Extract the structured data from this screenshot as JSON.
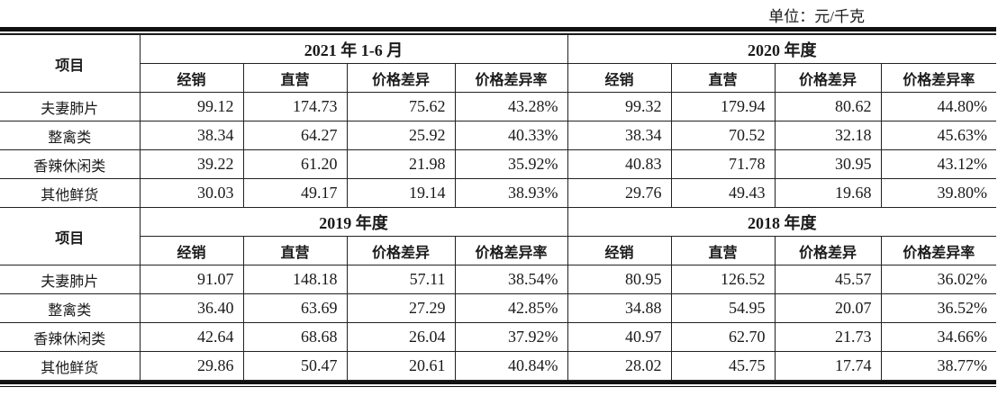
{
  "unit_label": "单位：元/千克",
  "item_header": "项目",
  "column_headers": [
    "经销",
    "直营",
    "价格差异",
    "价格差异率"
  ],
  "blocks": [
    {
      "periods": [
        "2021 年 1-6 月",
        "2020 年度"
      ],
      "rows": [
        {
          "item": "夫妻肺片",
          "values": [
            [
              "99.12",
              "174.73",
              "75.62",
              "43.28%"
            ],
            [
              "99.32",
              "179.94",
              "80.62",
              "44.80%"
            ]
          ]
        },
        {
          "item": "整禽类",
          "values": [
            [
              "38.34",
              "64.27",
              "25.92",
              "40.33%"
            ],
            [
              "38.34",
              "70.52",
              "32.18",
              "45.63%"
            ]
          ]
        },
        {
          "item": "香辣休闲类",
          "values": [
            [
              "39.22",
              "61.20",
              "21.98",
              "35.92%"
            ],
            [
              "40.83",
              "71.78",
              "30.95",
              "43.12%"
            ]
          ]
        },
        {
          "item": "其他鲜货",
          "values": [
            [
              "30.03",
              "49.17",
              "19.14",
              "38.93%"
            ],
            [
              "29.76",
              "49.43",
              "19.68",
              "39.80%"
            ]
          ]
        }
      ]
    },
    {
      "periods": [
        "2019 年度",
        "2018 年度"
      ],
      "rows": [
        {
          "item": "夫妻肺片",
          "values": [
            [
              "91.07",
              "148.18",
              "57.11",
              "38.54%"
            ],
            [
              "80.95",
              "126.52",
              "45.57",
              "36.02%"
            ]
          ]
        },
        {
          "item": "整禽类",
          "values": [
            [
              "36.40",
              "63.69",
              "27.29",
              "42.85%"
            ],
            [
              "34.88",
              "54.95",
              "20.07",
              "36.52%"
            ]
          ]
        },
        {
          "item": "香辣休闲类",
          "values": [
            [
              "42.64",
              "68.68",
              "26.04",
              "37.92%"
            ],
            [
              "40.97",
              "62.70",
              "21.73",
              "34.66%"
            ]
          ]
        },
        {
          "item": "其他鲜货",
          "values": [
            [
              "29.86",
              "50.47",
              "20.61",
              "40.84%"
            ],
            [
              "28.02",
              "45.75",
              "17.74",
              "38.77%"
            ]
          ]
        }
      ]
    }
  ]
}
